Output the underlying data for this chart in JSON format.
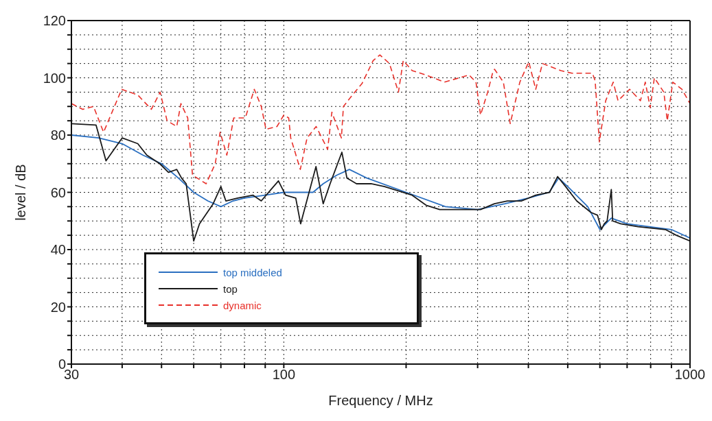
{
  "chart_data": {
    "type": "line",
    "xlabel": "Frequency / MHz",
    "ylabel": "level / dB",
    "log": "x",
    "xlim": [
      30,
      1000
    ],
    "ylim": [
      0,
      120
    ],
    "xticks": [
      30,
      {
        "value": 40,
        "label": null
      },
      {
        "value": 50,
        "label": null
      },
      {
        "value": 60,
        "label": null
      },
      {
        "value": 70,
        "label": null
      },
      {
        "value": 80,
        "label": null
      },
      {
        "value": 90,
        "label": null
      },
      100,
      {
        "value": 200,
        "label": null
      },
      {
        "value": 300,
        "label": null
      },
      {
        "value": 400,
        "label": null
      },
      {
        "value": 500,
        "label": null
      },
      {
        "value": 600,
        "label": null
      },
      {
        "value": 700,
        "label": null
      },
      {
        "value": 800,
        "label": null
      },
      {
        "value": 900,
        "label": null
      },
      1000
    ],
    "yticks": [
      0,
      {
        "value": 5,
        "label": null
      },
      {
        "value": 10,
        "label": null
      },
      {
        "value": 15,
        "label": null
      },
      20,
      {
        "value": 25,
        "label": null
      },
      {
        "value": 30,
        "label": null
      },
      {
        "value": 35,
        "label": null
      },
      40,
      {
        "value": 45,
        "label": null
      },
      {
        "value": 50,
        "label": null
      },
      {
        "value": 55,
        "label": null
      },
      60,
      {
        "value": 65,
        "label": null
      },
      {
        "value": 70,
        "label": null
      },
      {
        "value": 75,
        "label": null
      },
      80,
      {
        "value": 85,
        "label": null
      },
      {
        "value": 90,
        "label": null
      },
      {
        "value": 95,
        "label": null
      },
      100,
      {
        "value": 105,
        "label": null
      },
      {
        "value": 110,
        "label": null
      },
      {
        "value": 115,
        "label": null
      },
      120
    ],
    "grid": true,
    "legend": "bottom left",
    "marker": "none",
    "series": [
      {
        "name": "top middeled",
        "color": "#2a6fc0",
        "line_style": "solid",
        "x": [
          30,
          35,
          40,
          45,
          50,
          55,
          60,
          65,
          70,
          75,
          80,
          90,
          100,
          110,
          118,
          125,
          135,
          145,
          160,
          200,
          250,
          300,
          350,
          400,
          450,
          475,
          500,
          560,
          600,
          640,
          700,
          900,
          1000
        ],
        "values": [
          80,
          79,
          77,
          73,
          70,
          65,
          60,
          57,
          55,
          57,
          58,
          59,
          60,
          60,
          60,
          63,
          66,
          68,
          65,
          60,
          55,
          54,
          56,
          58,
          60,
          65,
          62,
          55,
          47,
          51,
          49,
          47,
          44
        ]
      },
      {
        "name": "top",
        "color": "#1a1a1a",
        "line_style": "solid",
        "x": [
          30,
          34.5,
          36.5,
          40,
          43.7,
          46,
          49.5,
          52,
          54.5,
          56,
          57.5,
          60,
          62,
          67,
          70,
          72,
          77,
          84,
          88,
          93,
          97,
          101,
          107,
          110,
          120,
          125,
          130,
          139,
          143,
          151,
          164,
          177,
          207,
          224,
          242,
          282,
          305,
          330,
          355,
          385,
          417,
          451,
          472,
          494,
          526,
          570,
          592,
          605,
          615,
          625,
          640,
          645,
          675,
          745,
          870,
          925,
          1000
        ],
        "values": [
          84,
          83.5,
          71,
          79,
          77,
          73,
          70,
          67,
          68,
          65,
          63,
          43,
          49,
          56,
          62,
          57,
          58,
          59,
          57,
          61,
          64,
          59,
          58,
          49,
          69,
          56,
          63,
          74,
          65,
          63,
          63,
          62,
          59,
          55.5,
          54,
          54,
          54,
          56,
          57,
          57,
          59,
          60,
          65.5,
          62,
          57,
          53,
          52,
          47,
          49,
          50,
          61,
          50,
          49,
          48,
          47,
          45,
          43
        ]
      },
      {
        "name": "dynamic",
        "color": "#e8302a",
        "line_style": "dashed",
        "x": [
          30,
          32,
          34,
          36,
          39.9,
          43.7,
          47.2,
          49.6,
          51.6,
          54.5,
          55.8,
          58,
          59.6,
          64.4,
          67.8,
          69.7,
          72.4,
          75.3,
          80.4,
          84.6,
          88,
          90.4,
          96.2,
          100,
          102.8,
          104,
          109.8,
          114.1,
          120.1,
          128.2,
          131.3,
          138.6,
          140.2,
          147.5,
          155.8,
          165.9,
          172.4,
          182,
          191.5,
          196.8,
          207,
          223.8,
          248.5,
          285.8,
          297.2,
          305,
          317.6,
          326.3,
          330.2,
          347.1,
          360.9,
          381.1,
          400.9,
          417,
          433.3,
          481,
          512,
          575,
          584,
          598,
          620,
          647,
          665,
          710,
          755,
          776,
          798,
          817,
          862,
          879,
          907,
          955,
          1000
        ],
        "values": [
          91,
          89,
          90,
          81,
          96,
          94,
          89,
          95,
          85,
          83,
          91,
          86,
          66,
          63,
          70,
          81,
          73,
          86,
          86,
          96,
          90,
          82,
          83,
          87,
          86,
          79,
          68,
          79,
          83,
          75,
          88,
          79,
          90,
          94,
          98,
          106,
          108,
          105,
          95,
          106,
          102.5,
          101,
          98.5,
          101,
          98.5,
          87,
          95,
          101.5,
          103,
          98.5,
          84,
          98.5,
          105.6,
          96,
          105,
          102.5,
          101.6,
          101.6,
          99,
          77.6,
          92,
          98.5,
          92,
          96,
          92,
          98.5,
          89.6,
          100,
          95,
          85,
          98.5,
          96,
          91
        ]
      }
    ]
  }
}
